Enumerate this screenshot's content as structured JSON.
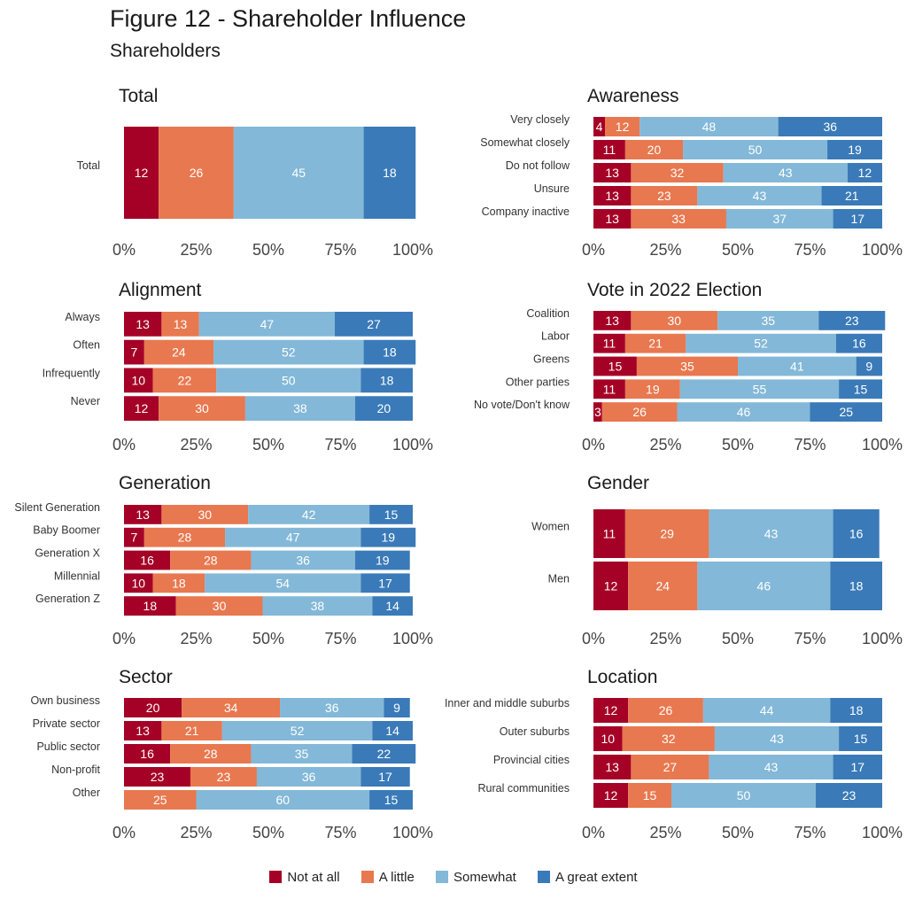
{
  "figure": {
    "title": "Figure 12 - Shareholder Influence",
    "subtitle": "Shareholders"
  },
  "legend": [
    {
      "label": "Not at all",
      "color": "#a50026"
    },
    {
      "label": "A little",
      "color": "#e8784f"
    },
    {
      "label": "Somewhat",
      "color": "#83b8d8"
    },
    {
      "label": "A great extent",
      "color": "#3a7ab8"
    }
  ],
  "axis_ticks": [
    "0%",
    "25%",
    "50%",
    "75%",
    "100%"
  ],
  "chart_data": [
    {
      "type": "bar",
      "stacked": true,
      "orientation": "horizontal",
      "title": "Total",
      "categories": [
        "Total"
      ],
      "series": [
        {
          "name": "Not at all",
          "values": [
            12
          ]
        },
        {
          "name": "A little",
          "values": [
            26
          ]
        },
        {
          "name": "Somewhat",
          "values": [
            45
          ]
        },
        {
          "name": "A great extent",
          "values": [
            18
          ]
        }
      ],
      "xlim": [
        0,
        100
      ]
    },
    {
      "type": "bar",
      "stacked": true,
      "orientation": "horizontal",
      "title": "Awareness",
      "categories": [
        "Very closely",
        "Somewhat closely",
        "Do not follow",
        "Unsure",
        "Company inactive"
      ],
      "series": [
        {
          "name": "Not at all",
          "values": [
            4,
            11,
            13,
            13,
            13
          ]
        },
        {
          "name": "A little",
          "values": [
            12,
            20,
            32,
            23,
            33
          ]
        },
        {
          "name": "Somewhat",
          "values": [
            48,
            50,
            43,
            43,
            37
          ]
        },
        {
          "name": "A great extent",
          "values": [
            36,
            19,
            12,
            21,
            17
          ]
        }
      ],
      "xlim": [
        0,
        100
      ]
    },
    {
      "type": "bar",
      "stacked": true,
      "orientation": "horizontal",
      "title": "Alignment",
      "categories": [
        "Always",
        "Often",
        "Infrequently",
        "Never"
      ],
      "series": [
        {
          "name": "Not at all",
          "values": [
            13,
            7,
            10,
            12
          ]
        },
        {
          "name": "A little",
          "values": [
            13,
            24,
            22,
            30
          ]
        },
        {
          "name": "Somewhat",
          "values": [
            47,
            52,
            50,
            38
          ]
        },
        {
          "name": "A great extent",
          "values": [
            27,
            18,
            18,
            20
          ]
        }
      ],
      "xlim": [
        0,
        100
      ]
    },
    {
      "type": "bar",
      "stacked": true,
      "orientation": "horizontal",
      "title": "Vote in 2022 Election",
      "categories": [
        "Coalition",
        "Labor",
        "Greens",
        "Other parties",
        "No vote/Don't know"
      ],
      "series": [
        {
          "name": "Not at all",
          "values": [
            13,
            11,
            15,
            11,
            3
          ]
        },
        {
          "name": "A little",
          "values": [
            30,
            21,
            35,
            19,
            26
          ]
        },
        {
          "name": "Somewhat",
          "values": [
            35,
            52,
            41,
            55,
            46
          ]
        },
        {
          "name": "A great extent",
          "values": [
            23,
            16,
            9,
            15,
            25
          ]
        }
      ],
      "xlim": [
        0,
        100
      ]
    },
    {
      "type": "bar",
      "stacked": true,
      "orientation": "horizontal",
      "title": "Generation",
      "categories": [
        "Silent Generation",
        "Baby Boomer",
        "Generation X",
        "Millennial",
        "Generation Z"
      ],
      "series": [
        {
          "name": "Not at all",
          "values": [
            13,
            7,
            16,
            10,
            18
          ]
        },
        {
          "name": "A little",
          "values": [
            30,
            28,
            28,
            18,
            30
          ]
        },
        {
          "name": "Somewhat",
          "values": [
            42,
            47,
            36,
            54,
            38
          ]
        },
        {
          "name": "A great extent",
          "values": [
            15,
            19,
            19,
            17,
            14
          ]
        }
      ],
      "xlim": [
        0,
        100
      ]
    },
    {
      "type": "bar",
      "stacked": true,
      "orientation": "horizontal",
      "title": "Gender",
      "categories": [
        "Women",
        "Men"
      ],
      "series": [
        {
          "name": "Not at all",
          "values": [
            11,
            12
          ]
        },
        {
          "name": "A little",
          "values": [
            29,
            24
          ]
        },
        {
          "name": "Somewhat",
          "values": [
            43,
            46
          ]
        },
        {
          "name": "A great extent",
          "values": [
            16,
            18
          ]
        }
      ],
      "xlim": [
        0,
        100
      ]
    },
    {
      "type": "bar",
      "stacked": true,
      "orientation": "horizontal",
      "title": "Sector",
      "categories": [
        "Own business",
        "Private sector",
        "Public sector",
        "Non-profit",
        "Other"
      ],
      "series": [
        {
          "name": "Not at all",
          "values": [
            20,
            13,
            16,
            23,
            0
          ]
        },
        {
          "name": "A little",
          "values": [
            34,
            21,
            28,
            23,
            25
          ]
        },
        {
          "name": "Somewhat",
          "values": [
            36,
            52,
            35,
            36,
            60
          ]
        },
        {
          "name": "A great extent",
          "values": [
            9,
            14,
            22,
            17,
            15
          ]
        }
      ],
      "xlim": [
        0,
        100
      ]
    },
    {
      "type": "bar",
      "stacked": true,
      "orientation": "horizontal",
      "title": "Location",
      "categories": [
        "Inner and middle suburbs",
        "Outer suburbs",
        "Provincial cities",
        "Rural communities"
      ],
      "series": [
        {
          "name": "Not at all",
          "values": [
            12,
            10,
            13,
            12
          ]
        },
        {
          "name": "A little",
          "values": [
            26,
            32,
            27,
            15
          ]
        },
        {
          "name": "Somewhat",
          "values": [
            44,
            43,
            43,
            50
          ]
        },
        {
          "name": "A great extent",
          "values": [
            18,
            15,
            17,
            23
          ]
        }
      ],
      "xlim": [
        0,
        100
      ]
    }
  ]
}
